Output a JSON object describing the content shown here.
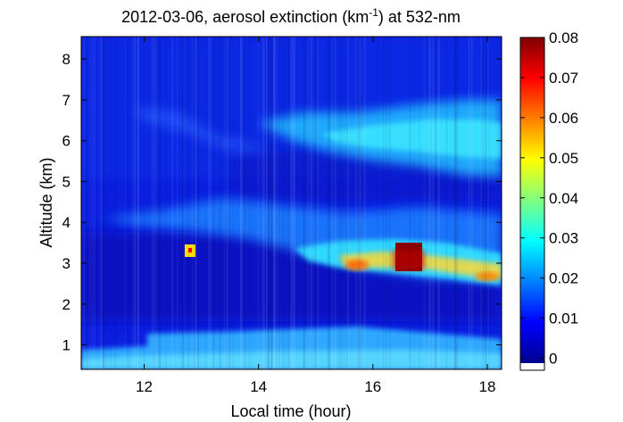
{
  "chart_data": {
    "type": "heatmap",
    "title": {
      "prefix": "2012-03-06, aerosol extinction (km",
      "superscript": "-1",
      "suffix": ") at 532-nm"
    },
    "xlabel": "Local time (hour)",
    "ylabel": "Altitude (km)",
    "xlim": [
      10.9,
      18.25
    ],
    "ylim": [
      0.4,
      8.55
    ],
    "x_ticks": [
      "12",
      "14",
      "16",
      "18"
    ],
    "y_ticks": [
      "1",
      "2",
      "3",
      "4",
      "5",
      "6",
      "7",
      "8"
    ],
    "colorbar": {
      "range": [
        -0.003,
        0.08
      ],
      "ticks": [
        "0",
        "0.01",
        "0.02",
        "0.03",
        "0.04",
        "0.05",
        "0.06",
        "0.07",
        "0.08"
      ],
      "colormap": "jet"
    },
    "features": [
      {
        "name": "boundary layer",
        "time": [
          10.9,
          18.25
        ],
        "altitude": [
          0.4,
          1.4
        ],
        "extinction": 0.022
      },
      {
        "name": "elevated layer",
        "time": [
          11.5,
          18.25
        ],
        "altitude": [
          2.5,
          4.3
        ],
        "extinction": 0.018
      },
      {
        "name": "enhanced layer",
        "time": [
          14.8,
          18.25
        ],
        "altitude": [
          2.6,
          3.4
        ],
        "extinction": 0.045
      },
      {
        "name": "peak plume",
        "time": [
          16.5,
          16.8
        ],
        "altitude": [
          2.9,
          3.4
        ],
        "extinction": 0.08
      },
      {
        "name": "upper layer",
        "time": [
          14.5,
          18.25
        ],
        "altitude": [
          5.2,
          6.7
        ],
        "extinction": 0.024
      },
      {
        "name": "isolated patch",
        "time": [
          12.75,
          12.9
        ],
        "altitude": [
          3.2,
          3.4
        ],
        "extinction": 0.05
      }
    ]
  }
}
